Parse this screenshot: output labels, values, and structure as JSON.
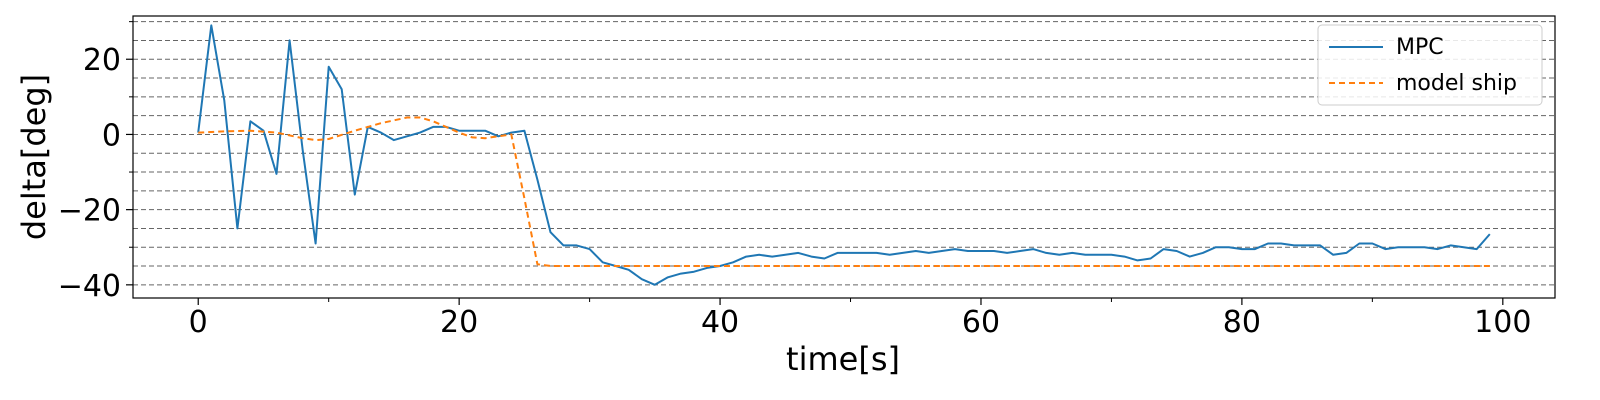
{
  "chart_data": {
    "type": "line",
    "xlabel": "time[s]",
    "ylabel": "delta[deg]",
    "xlim": [
      -5,
      104
    ],
    "ylim": [
      -43.5,
      31.5
    ],
    "xticks": [
      0,
      20,
      40,
      60,
      80,
      100
    ],
    "xtick_labels": [
      "0",
      "20",
      "40",
      "60",
      "80",
      "100"
    ],
    "yticks": [
      20,
      0,
      -20,
      -40
    ],
    "ytick_labels": [
      "20",
      "0",
      "−20",
      "−40"
    ],
    "grid": "horizontal dashed gray lines every 5",
    "legend_position": "upper-right",
    "series": [
      {
        "name": "MPC",
        "color": "#1f77b4",
        "style": "solid",
        "x": [
          0,
          1,
          2,
          3,
          4,
          5,
          6,
          7,
          8,
          9,
          10,
          11,
          12,
          13,
          14,
          15,
          16,
          17,
          18,
          19,
          20,
          21,
          22,
          23,
          24,
          25,
          26,
          27,
          28,
          29,
          30,
          31,
          32,
          33,
          34,
          35,
          36,
          37,
          38,
          39,
          40,
          41,
          42,
          43,
          44,
          45,
          46,
          47,
          48,
          49,
          50,
          51,
          52,
          53,
          54,
          55,
          56,
          57,
          58,
          59,
          60,
          61,
          62,
          63,
          64,
          65,
          66,
          67,
          68,
          69,
          70,
          71,
          72,
          73,
          74,
          75,
          76,
          77,
          78,
          79,
          80,
          81,
          82,
          83,
          84,
          85,
          86,
          87,
          88,
          89,
          90,
          91,
          92,
          93,
          94,
          95,
          96,
          97,
          98,
          99
        ],
        "y": [
          0.5,
          29,
          9,
          -25,
          3.5,
          1,
          -10.5,
          25,
          -4,
          -29,
          18,
          12,
          -16,
          2,
          0.5,
          -1.5,
          -0.5,
          0.5,
          2,
          2,
          1,
          1,
          1,
          -0.5,
          0.5,
          1,
          -12,
          -26,
          -29.5,
          -29.5,
          -30.5,
          -34,
          -35,
          -36,
          -38.5,
          -40,
          -38,
          -37,
          -36.5,
          -35.5,
          -35,
          -34,
          -32.5,
          -32,
          -32.5,
          -32,
          -31.5,
          -32.5,
          -33,
          -31.5,
          -31.5,
          -31.5,
          -31.5,
          -32,
          -31.5,
          -31,
          -31.5,
          -31,
          -30.5,
          -31,
          -31,
          -31,
          -31.5,
          -31,
          -30.5,
          -31.5,
          -32,
          -31.5,
          -32,
          -32,
          -32,
          -32.5,
          -33.5,
          -33,
          -30.5,
          -31,
          -32.5,
          -31.5,
          -30,
          -30,
          -30.5,
          -30.5,
          -29,
          -29,
          -29.5,
          -29.5,
          -29.5,
          -32,
          -31.5,
          -29,
          -29,
          -30.5,
          -30,
          -30,
          -30,
          -30.5,
          -29.5,
          -30,
          -30.5,
          -26.5
        ]
      },
      {
        "name": "model ship",
        "color": "#ff7f0e",
        "style": "dashed",
        "x": [
          0,
          2,
          4,
          6,
          8,
          9,
          10,
          12,
          14,
          16,
          17,
          18,
          20,
          21,
          22,
          23,
          24,
          25,
          26,
          27,
          30,
          40,
          50,
          60,
          70,
          80,
          90,
          99
        ],
        "y": [
          0.5,
          0.8,
          1,
          0.5,
          -1,
          -1.5,
          -1.2,
          1,
          3,
          4.5,
          4.5,
          3.5,
          0.5,
          -0.8,
          -1,
          -0.5,
          0,
          -17,
          -34.5,
          -35,
          -35,
          -35,
          -35,
          -35,
          -35,
          -35,
          -35,
          -35
        ]
      }
    ]
  }
}
